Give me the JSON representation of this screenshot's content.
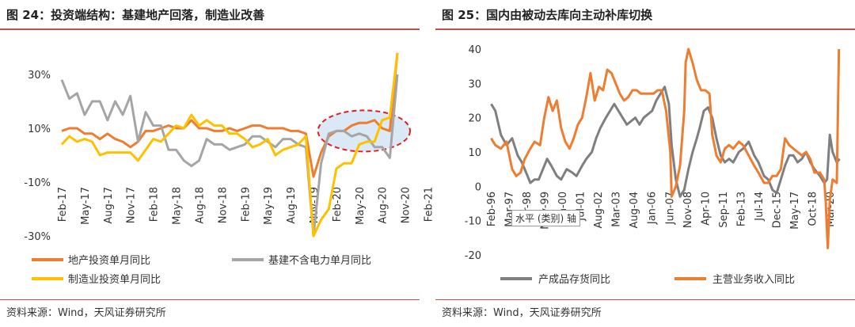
{
  "colors": {
    "orange": "#ED7D31",
    "gray": "#A5A5A5",
    "yellow": "#FFC000",
    "darkgray": "#7F7F7F",
    "rule": "#C0504D",
    "ellipse_fill": "#BDD7EE",
    "ellipse_stroke": "#E02020"
  },
  "charts": {
    "left": {
      "title": "图 24：投资端结构：基建地产回落，制造业改善",
      "source": "资料来源：Wind，天风证券研究所"
    },
    "right": {
      "title": "图 25：国内由被动去库向主动补库切换",
      "source": "资料来源：Wind，天风证券研究所",
      "tooltip": "水平 (类别) 轴"
    }
  },
  "chart_data": [
    {
      "type": "line",
      "title": "图 24：投资端结构：基建地产回落，制造业改善",
      "x": [
        "Feb-17",
        "Mar-17",
        "Apr-17",
        "May-17",
        "Jun-17",
        "Jul-17",
        "Aug-17",
        "Sep-17",
        "Oct-17",
        "Nov-17",
        "Dec-17",
        "Feb-18",
        "Mar-18",
        "Apr-18",
        "May-18",
        "Jun-18",
        "Jul-18",
        "Aug-18",
        "Sep-18",
        "Oct-18",
        "Nov-18",
        "Dec-18",
        "Feb-19",
        "Mar-19",
        "Apr-19",
        "May-19",
        "Jun-19",
        "Jul-19",
        "Aug-19",
        "Sep-19",
        "Oct-19",
        "Nov-19",
        "Dec-19",
        "Feb-20",
        "Mar-20",
        "Apr-20",
        "May-20",
        "Jun-20",
        "Jul-20",
        "Aug-20",
        "Sep-20",
        "Oct-20",
        "Nov-20",
        "Dec-20",
        "Feb-21"
      ],
      "x_tick_labels": [
        "Feb-17",
        "May-17",
        "Aug-17",
        "Nov-17",
        "Feb-18",
        "May-18",
        "Aug-18",
        "Nov-18",
        "Feb-19",
        "May-19",
        "Aug-19",
        "Nov-19",
        "Feb-20",
        "May-20",
        "Aug-20",
        "Nov-20",
        "Feb-21"
      ],
      "y_tick_labels": [
        "30%",
        "10%",
        "-10%",
        "-30%"
      ],
      "ylim": [
        -30,
        40
      ],
      "series": [
        {
          "name": "地产投资单月同比",
          "color_key": "orange",
          "values": [
            9,
            10,
            10,
            8,
            8,
            6,
            8,
            6,
            5,
            3,
            5,
            9,
            9,
            10,
            11,
            10,
            10,
            13,
            10,
            10,
            9,
            9,
            10,
            9,
            10,
            11,
            11,
            10,
            10,
            10,
            9,
            9,
            8,
            -8,
            1,
            7,
            9,
            9,
            11,
            12,
            12,
            13,
            10,
            9,
            38
          ]
        },
        {
          "name": "基建不含电力单月同比",
          "color_key": "gray",
          "values": [
            28,
            21,
            23,
            15,
            20,
            20,
            13,
            20,
            15,
            22,
            5,
            16,
            11,
            11,
            2,
            2,
            -2,
            -4,
            -2,
            6,
            4,
            4,
            2,
            3,
            4,
            7,
            7,
            5,
            3,
            6,
            6,
            4,
            3,
            -30,
            -3,
            8,
            9,
            9,
            7,
            8,
            7,
            3,
            3,
            -1,
            30
          ]
        },
        {
          "name": "制造业投资单月同比",
          "color_key": "yellow",
          "values": [
            4,
            7,
            5,
            6,
            5,
            0,
            1,
            1,
            1,
            1,
            -2,
            2,
            6,
            5,
            8,
            11,
            10,
            15,
            11,
            13,
            11,
            11,
            8,
            8,
            6,
            3,
            4,
            6,
            0,
            2,
            3,
            4,
            7,
            -30,
            -24,
            -20,
            -5,
            -3,
            -3,
            4,
            5,
            5,
            13,
            14,
            38
          ]
        }
      ]
    },
    {
      "type": "line",
      "title": "图 25：国内由被动去库向主动补库切换",
      "x_tick_labels": [
        "Feb-96",
        "Mar-97",
        "Apr-98",
        "May-99",
        "Jun-00",
        "Jul-01",
        "Aug-02",
        "Mar-03",
        "Aug-04",
        "Jan-06",
        "Jun-07",
        "Nov-08",
        "Apr-10",
        "Sep-11",
        "Feb-13",
        "Jul-14",
        "Dec-15",
        "May-17",
        "Oct-18",
        "Mar-20"
      ],
      "x_range": [
        1996.08,
        2021.08
      ],
      "y_tick_labels": [
        "40",
        "30",
        "20",
        "10",
        "0",
        "-10",
        "-20"
      ],
      "ylim": [
        -20,
        40
      ],
      "series": [
        {
          "name": "产成品存货同比",
          "color_key": "darkgray",
          "points": [
            [
              1996.1,
              24
            ],
            [
              1996.4,
              22
            ],
            [
              1996.8,
              15
            ],
            [
              1997.2,
              12
            ],
            [
              1997.6,
              14
            ],
            [
              1998.0,
              9
            ],
            [
              1998.3,
              7
            ],
            [
              1998.6,
              4
            ],
            [
              1998.9,
              1
            ],
            [
              1999.2,
              2
            ],
            [
              1999.5,
              2
            ],
            [
              1999.8,
              5
            ],
            [
              2000.1,
              8
            ],
            [
              2000.4,
              6
            ],
            [
              2000.8,
              3
            ],
            [
              2001.1,
              2
            ],
            [
              2001.5,
              5
            ],
            [
              2001.9,
              4
            ],
            [
              2002.2,
              3
            ],
            [
              2002.6,
              6
            ],
            [
              2002.9,
              8
            ],
            [
              2003.3,
              10
            ],
            [
              2003.6,
              14
            ],
            [
              2003.9,
              17
            ],
            [
              2004.3,
              20
            ],
            [
              2004.6,
              22
            ],
            [
              2004.9,
              24
            ],
            [
              2005.2,
              22
            ],
            [
              2005.5,
              20
            ],
            [
              2005.8,
              18
            ],
            [
              2006.1,
              19
            ],
            [
              2006.4,
              20
            ],
            [
              2006.7,
              18
            ],
            [
              2007.0,
              20
            ],
            [
              2007.3,
              21
            ],
            [
              2007.6,
              22
            ],
            [
              2007.9,
              25
            ],
            [
              2008.2,
              27
            ],
            [
              2008.5,
              29
            ],
            [
              2008.8,
              24
            ],
            [
              2009.0,
              12
            ],
            [
              2009.3,
              2
            ],
            [
              2009.6,
              -3
            ],
            [
              2009.9,
              -1
            ],
            [
              2010.2,
              5
            ],
            [
              2010.5,
              10
            ],
            [
              2010.8,
              14
            ],
            [
              2011.0,
              17
            ],
            [
              2011.3,
              22
            ],
            [
              2011.6,
              23
            ],
            [
              2011.9,
              20
            ],
            [
              2012.2,
              14
            ],
            [
              2012.5,
              9
            ],
            [
              2012.8,
              7
            ],
            [
              2013.1,
              8
            ],
            [
              2013.4,
              7
            ],
            [
              2013.8,
              10
            ],
            [
              2014.1,
              11
            ],
            [
              2014.5,
              13
            ],
            [
              2014.9,
              9
            ],
            [
              2015.2,
              7
            ],
            [
              2015.6,
              3
            ],
            [
              2015.9,
              2
            ],
            [
              2016.2,
              -1
            ],
            [
              2016.5,
              -2
            ],
            [
              2016.8,
              2
            ],
            [
              2017.1,
              6
            ],
            [
              2017.4,
              9
            ],
            [
              2017.7,
              9
            ],
            [
              2018.0,
              7
            ],
            [
              2018.3,
              8
            ],
            [
              2018.6,
              10
            ],
            [
              2018.9,
              7
            ],
            [
              2019.2,
              5
            ],
            [
              2019.6,
              3
            ],
            [
              2019.9,
              1
            ],
            [
              2020.1,
              2
            ],
            [
              2020.3,
              15
            ],
            [
              2020.5,
              10
            ],
            [
              2020.8,
              7
            ],
            [
              2021.0,
              8
            ]
          ]
        },
        {
          "name": "主营业务收入同比",
          "color_key": "orange",
          "points": [
            [
              1996.1,
              14
            ],
            [
              1996.4,
              12
            ],
            [
              1996.8,
              11
            ],
            [
              1997.2,
              13
            ],
            [
              1997.6,
              5
            ],
            [
              1997.9,
              3
            ],
            [
              1998.2,
              4
            ],
            [
              1998.5,
              8
            ],
            [
              1998.9,
              11
            ],
            [
              1999.2,
              13
            ],
            [
              1999.6,
              12
            ],
            [
              1999.9,
              20
            ],
            [
              2000.2,
              26
            ],
            [
              2000.5,
              22
            ],
            [
              2000.8,
              25
            ],
            [
              2001.1,
              17
            ],
            [
              2001.4,
              13
            ],
            [
              2001.7,
              11
            ],
            [
              2002.0,
              14
            ],
            [
              2002.3,
              18
            ],
            [
              2002.6,
              20
            ],
            [
              2002.9,
              26
            ],
            [
              2003.2,
              33
            ],
            [
              2003.5,
              25
            ],
            [
              2003.8,
              29
            ],
            [
              2004.1,
              28
            ],
            [
              2004.4,
              34
            ],
            [
              2004.7,
              33
            ],
            [
              2005.0,
              30
            ],
            [
              2005.3,
              27
            ],
            [
              2005.6,
              25
            ],
            [
              2005.9,
              26
            ],
            [
              2006.2,
              28
            ],
            [
              2006.5,
              28
            ],
            [
              2006.8,
              27
            ],
            [
              2007.1,
              27
            ],
            [
              2007.4,
              27
            ],
            [
              2007.7,
              27
            ],
            [
              2008.0,
              28
            ],
            [
              2008.3,
              28
            ],
            [
              2008.6,
              22
            ],
            [
              2008.9,
              10
            ],
            [
              2009.0,
              -3
            ],
            [
              2009.3,
              0
            ],
            [
              2009.6,
              6
            ],
            [
              2009.9,
              22
            ],
            [
              2010.0,
              36
            ],
            [
              2010.2,
              40
            ],
            [
              2010.5,
              36
            ],
            [
              2010.8,
              31
            ],
            [
              2011.1,
              28
            ],
            [
              2011.4,
              28
            ],
            [
              2011.7,
              27
            ],
            [
              2011.9,
              15
            ],
            [
              2012.2,
              9
            ],
            [
              2012.5,
              7
            ],
            [
              2012.8,
              11
            ],
            [
              2013.1,
              12
            ],
            [
              2013.4,
              11
            ],
            [
              2013.8,
              13
            ],
            [
              2014.1,
              12
            ],
            [
              2014.5,
              9
            ],
            [
              2014.9,
              6
            ],
            [
              2015.2,
              4
            ],
            [
              2015.6,
              1
            ],
            [
              2015.9,
              1
            ],
            [
              2016.2,
              3
            ],
            [
              2016.5,
              3
            ],
            [
              2016.8,
              5
            ],
            [
              2017.1,
              14
            ],
            [
              2017.4,
              12
            ],
            [
              2017.7,
              11
            ],
            [
              2018.0,
              10
            ],
            [
              2018.3,
              9
            ],
            [
              2018.6,
              10
            ],
            [
              2018.9,
              8
            ],
            [
              2019.2,
              4
            ],
            [
              2019.6,
              4
            ],
            [
              2019.9,
              2
            ],
            [
              2020.0,
              -4
            ],
            [
              2020.15,
              -18
            ],
            [
              2020.3,
              -4
            ],
            [
              2020.5,
              2
            ],
            [
              2020.8,
              1
            ],
            [
              2020.95,
              40
            ]
          ]
        }
      ]
    }
  ]
}
